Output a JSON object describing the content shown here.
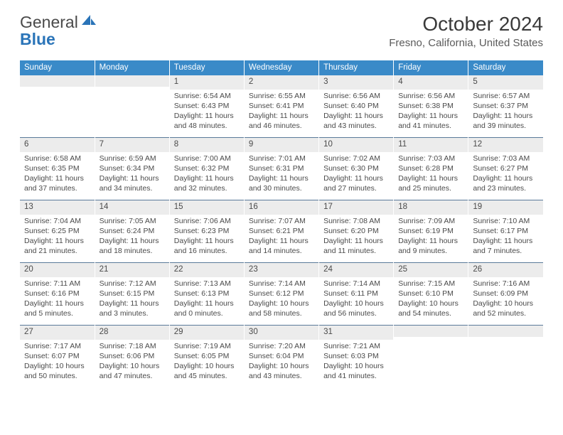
{
  "logo": {
    "text1": "General",
    "text2": "Blue",
    "accent_color": "#2a74b8"
  },
  "title": "October 2024",
  "location": "Fresno, California, United States",
  "colors": {
    "header_bg": "#3a8ac8",
    "header_text": "#ffffff",
    "daynum_bg": "#ececec",
    "border_top": "#5a7a9a",
    "text": "#4a4a4a"
  },
  "day_headers": [
    "Sunday",
    "Monday",
    "Tuesday",
    "Wednesday",
    "Thursday",
    "Friday",
    "Saturday"
  ],
  "weeks": [
    [
      {
        "num": "",
        "sunrise": "",
        "sunset": "",
        "daylight": ""
      },
      {
        "num": "",
        "sunrise": "",
        "sunset": "",
        "daylight": ""
      },
      {
        "num": "1",
        "sunrise": "Sunrise: 6:54 AM",
        "sunset": "Sunset: 6:43 PM",
        "daylight": "Daylight: 11 hours and 48 minutes."
      },
      {
        "num": "2",
        "sunrise": "Sunrise: 6:55 AM",
        "sunset": "Sunset: 6:41 PM",
        "daylight": "Daylight: 11 hours and 46 minutes."
      },
      {
        "num": "3",
        "sunrise": "Sunrise: 6:56 AM",
        "sunset": "Sunset: 6:40 PM",
        "daylight": "Daylight: 11 hours and 43 minutes."
      },
      {
        "num": "4",
        "sunrise": "Sunrise: 6:56 AM",
        "sunset": "Sunset: 6:38 PM",
        "daylight": "Daylight: 11 hours and 41 minutes."
      },
      {
        "num": "5",
        "sunrise": "Sunrise: 6:57 AM",
        "sunset": "Sunset: 6:37 PM",
        "daylight": "Daylight: 11 hours and 39 minutes."
      }
    ],
    [
      {
        "num": "6",
        "sunrise": "Sunrise: 6:58 AM",
        "sunset": "Sunset: 6:35 PM",
        "daylight": "Daylight: 11 hours and 37 minutes."
      },
      {
        "num": "7",
        "sunrise": "Sunrise: 6:59 AM",
        "sunset": "Sunset: 6:34 PM",
        "daylight": "Daylight: 11 hours and 34 minutes."
      },
      {
        "num": "8",
        "sunrise": "Sunrise: 7:00 AM",
        "sunset": "Sunset: 6:32 PM",
        "daylight": "Daylight: 11 hours and 32 minutes."
      },
      {
        "num": "9",
        "sunrise": "Sunrise: 7:01 AM",
        "sunset": "Sunset: 6:31 PM",
        "daylight": "Daylight: 11 hours and 30 minutes."
      },
      {
        "num": "10",
        "sunrise": "Sunrise: 7:02 AM",
        "sunset": "Sunset: 6:30 PM",
        "daylight": "Daylight: 11 hours and 27 minutes."
      },
      {
        "num": "11",
        "sunrise": "Sunrise: 7:03 AM",
        "sunset": "Sunset: 6:28 PM",
        "daylight": "Daylight: 11 hours and 25 minutes."
      },
      {
        "num": "12",
        "sunrise": "Sunrise: 7:03 AM",
        "sunset": "Sunset: 6:27 PM",
        "daylight": "Daylight: 11 hours and 23 minutes."
      }
    ],
    [
      {
        "num": "13",
        "sunrise": "Sunrise: 7:04 AM",
        "sunset": "Sunset: 6:25 PM",
        "daylight": "Daylight: 11 hours and 21 minutes."
      },
      {
        "num": "14",
        "sunrise": "Sunrise: 7:05 AM",
        "sunset": "Sunset: 6:24 PM",
        "daylight": "Daylight: 11 hours and 18 minutes."
      },
      {
        "num": "15",
        "sunrise": "Sunrise: 7:06 AM",
        "sunset": "Sunset: 6:23 PM",
        "daylight": "Daylight: 11 hours and 16 minutes."
      },
      {
        "num": "16",
        "sunrise": "Sunrise: 7:07 AM",
        "sunset": "Sunset: 6:21 PM",
        "daylight": "Daylight: 11 hours and 14 minutes."
      },
      {
        "num": "17",
        "sunrise": "Sunrise: 7:08 AM",
        "sunset": "Sunset: 6:20 PM",
        "daylight": "Daylight: 11 hours and 11 minutes."
      },
      {
        "num": "18",
        "sunrise": "Sunrise: 7:09 AM",
        "sunset": "Sunset: 6:19 PM",
        "daylight": "Daylight: 11 hours and 9 minutes."
      },
      {
        "num": "19",
        "sunrise": "Sunrise: 7:10 AM",
        "sunset": "Sunset: 6:17 PM",
        "daylight": "Daylight: 11 hours and 7 minutes."
      }
    ],
    [
      {
        "num": "20",
        "sunrise": "Sunrise: 7:11 AM",
        "sunset": "Sunset: 6:16 PM",
        "daylight": "Daylight: 11 hours and 5 minutes."
      },
      {
        "num": "21",
        "sunrise": "Sunrise: 7:12 AM",
        "sunset": "Sunset: 6:15 PM",
        "daylight": "Daylight: 11 hours and 3 minutes."
      },
      {
        "num": "22",
        "sunrise": "Sunrise: 7:13 AM",
        "sunset": "Sunset: 6:13 PM",
        "daylight": "Daylight: 11 hours and 0 minutes."
      },
      {
        "num": "23",
        "sunrise": "Sunrise: 7:14 AM",
        "sunset": "Sunset: 6:12 PM",
        "daylight": "Daylight: 10 hours and 58 minutes."
      },
      {
        "num": "24",
        "sunrise": "Sunrise: 7:14 AM",
        "sunset": "Sunset: 6:11 PM",
        "daylight": "Daylight: 10 hours and 56 minutes."
      },
      {
        "num": "25",
        "sunrise": "Sunrise: 7:15 AM",
        "sunset": "Sunset: 6:10 PM",
        "daylight": "Daylight: 10 hours and 54 minutes."
      },
      {
        "num": "26",
        "sunrise": "Sunrise: 7:16 AM",
        "sunset": "Sunset: 6:09 PM",
        "daylight": "Daylight: 10 hours and 52 minutes."
      }
    ],
    [
      {
        "num": "27",
        "sunrise": "Sunrise: 7:17 AM",
        "sunset": "Sunset: 6:07 PM",
        "daylight": "Daylight: 10 hours and 50 minutes."
      },
      {
        "num": "28",
        "sunrise": "Sunrise: 7:18 AM",
        "sunset": "Sunset: 6:06 PM",
        "daylight": "Daylight: 10 hours and 47 minutes."
      },
      {
        "num": "29",
        "sunrise": "Sunrise: 7:19 AM",
        "sunset": "Sunset: 6:05 PM",
        "daylight": "Daylight: 10 hours and 45 minutes."
      },
      {
        "num": "30",
        "sunrise": "Sunrise: 7:20 AM",
        "sunset": "Sunset: 6:04 PM",
        "daylight": "Daylight: 10 hours and 43 minutes."
      },
      {
        "num": "31",
        "sunrise": "Sunrise: 7:21 AM",
        "sunset": "Sunset: 6:03 PM",
        "daylight": "Daylight: 10 hours and 41 minutes."
      },
      {
        "num": "",
        "sunrise": "",
        "sunset": "",
        "daylight": ""
      },
      {
        "num": "",
        "sunrise": "",
        "sunset": "",
        "daylight": ""
      }
    ]
  ]
}
